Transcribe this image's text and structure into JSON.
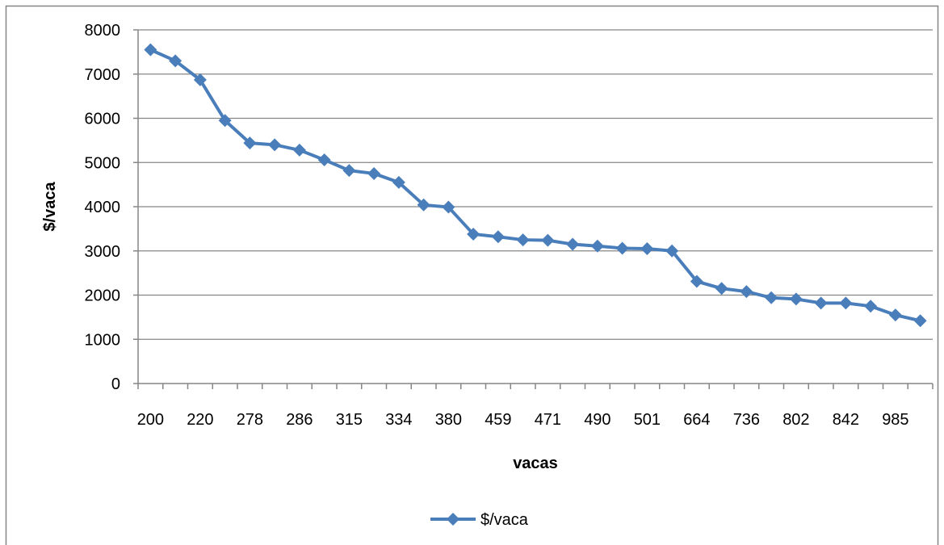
{
  "chart_data": {
    "type": "line",
    "xlabel": "vacas",
    "ylabel": "$/vaca",
    "ylim": [
      0,
      8000
    ],
    "yticks": [
      0,
      1000,
      2000,
      3000,
      4000,
      5000,
      6000,
      7000,
      8000
    ],
    "grid": true,
    "legend_position": "bottom",
    "categories": [
      "200",
      "",
      "220",
      "",
      "278",
      "",
      "286",
      "",
      "315",
      "",
      "334",
      "",
      "380",
      "",
      "459",
      "",
      "471",
      "",
      "490",
      "",
      "501",
      "",
      "664",
      "",
      "736",
      "",
      "802",
      "",
      "842",
      "",
      "985",
      ""
    ],
    "series": [
      {
        "name": "$/vaca",
        "color": "#4a7ebb",
        "marker": "diamond",
        "values": [
          7550,
          7300,
          6870,
          5950,
          5440,
          5400,
          5280,
          5060,
          4820,
          4750,
          4550,
          4040,
          3990,
          3380,
          3320,
          3250,
          3240,
          3150,
          3110,
          3060,
          3050,
          3000,
          2310,
          2150,
          2080,
          1940,
          1910,
          1820,
          1820,
          1750,
          1550,
          1420
        ]
      }
    ]
  }
}
